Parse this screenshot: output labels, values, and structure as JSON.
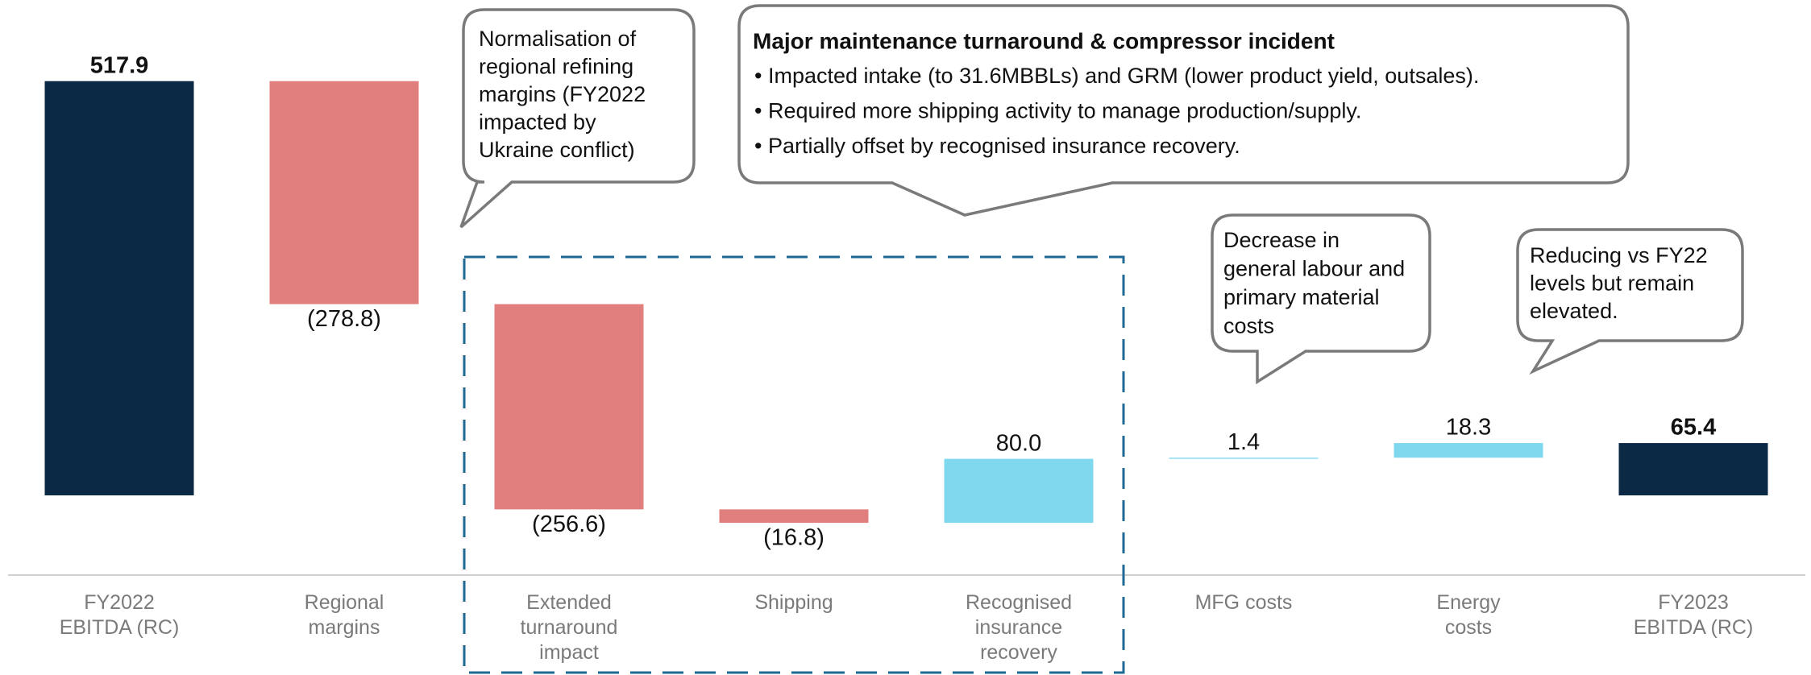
{
  "chart_data": {
    "type": "waterfall",
    "categories": [
      [
        "FY2022",
        "EBITDA (RC)"
      ],
      [
        "Regional",
        "margins"
      ],
      [
        "Extended",
        "turnaround",
        "impact"
      ],
      [
        "Shipping"
      ],
      [
        "Recognised",
        "insurance",
        "recovery"
      ],
      [
        "MFG costs"
      ],
      [
        "Energy",
        "costs"
      ],
      [
        "FY2023",
        "EBITDA (RC)"
      ]
    ],
    "values": [
      517.9,
      -278.8,
      -256.6,
      -16.8,
      80.0,
      1.4,
      18.3,
      65.4
    ],
    "value_labels": [
      "517.9",
      "(278.8)",
      "(256.6)",
      "(16.8)",
      "80.0",
      "1.4",
      "18.3",
      "65.4"
    ],
    "measures": [
      "total",
      "relative",
      "relative",
      "relative",
      "relative",
      "relative",
      "relative",
      "total"
    ],
    "colors": {
      "total": "#0b2845",
      "decrease": "#e07f7e",
      "increase": "#7fd8ee"
    },
    "annotations": [
      {
        "lines": [
          "Normalisation of",
          "regional refining",
          "margins (FY2022",
          "impacted by",
          "Ukraine conflict)"
        ]
      },
      {
        "title": "Major maintenance turnaround & compressor incident",
        "lines": [
          "• Impacted intake (to 31.6MBBLs) and GRM (lower product yield, outsales).",
          "• Required more shipping activity to manage production/supply.",
          "• Partially offset by recognised insurance recovery."
        ]
      },
      {
        "lines": [
          "Decrease in",
          "general labour and",
          "primary material",
          "costs"
        ]
      },
      {
        "lines": [
          "Reducing vs FY22",
          "levels but remain",
          "elevated."
        ]
      }
    ]
  }
}
